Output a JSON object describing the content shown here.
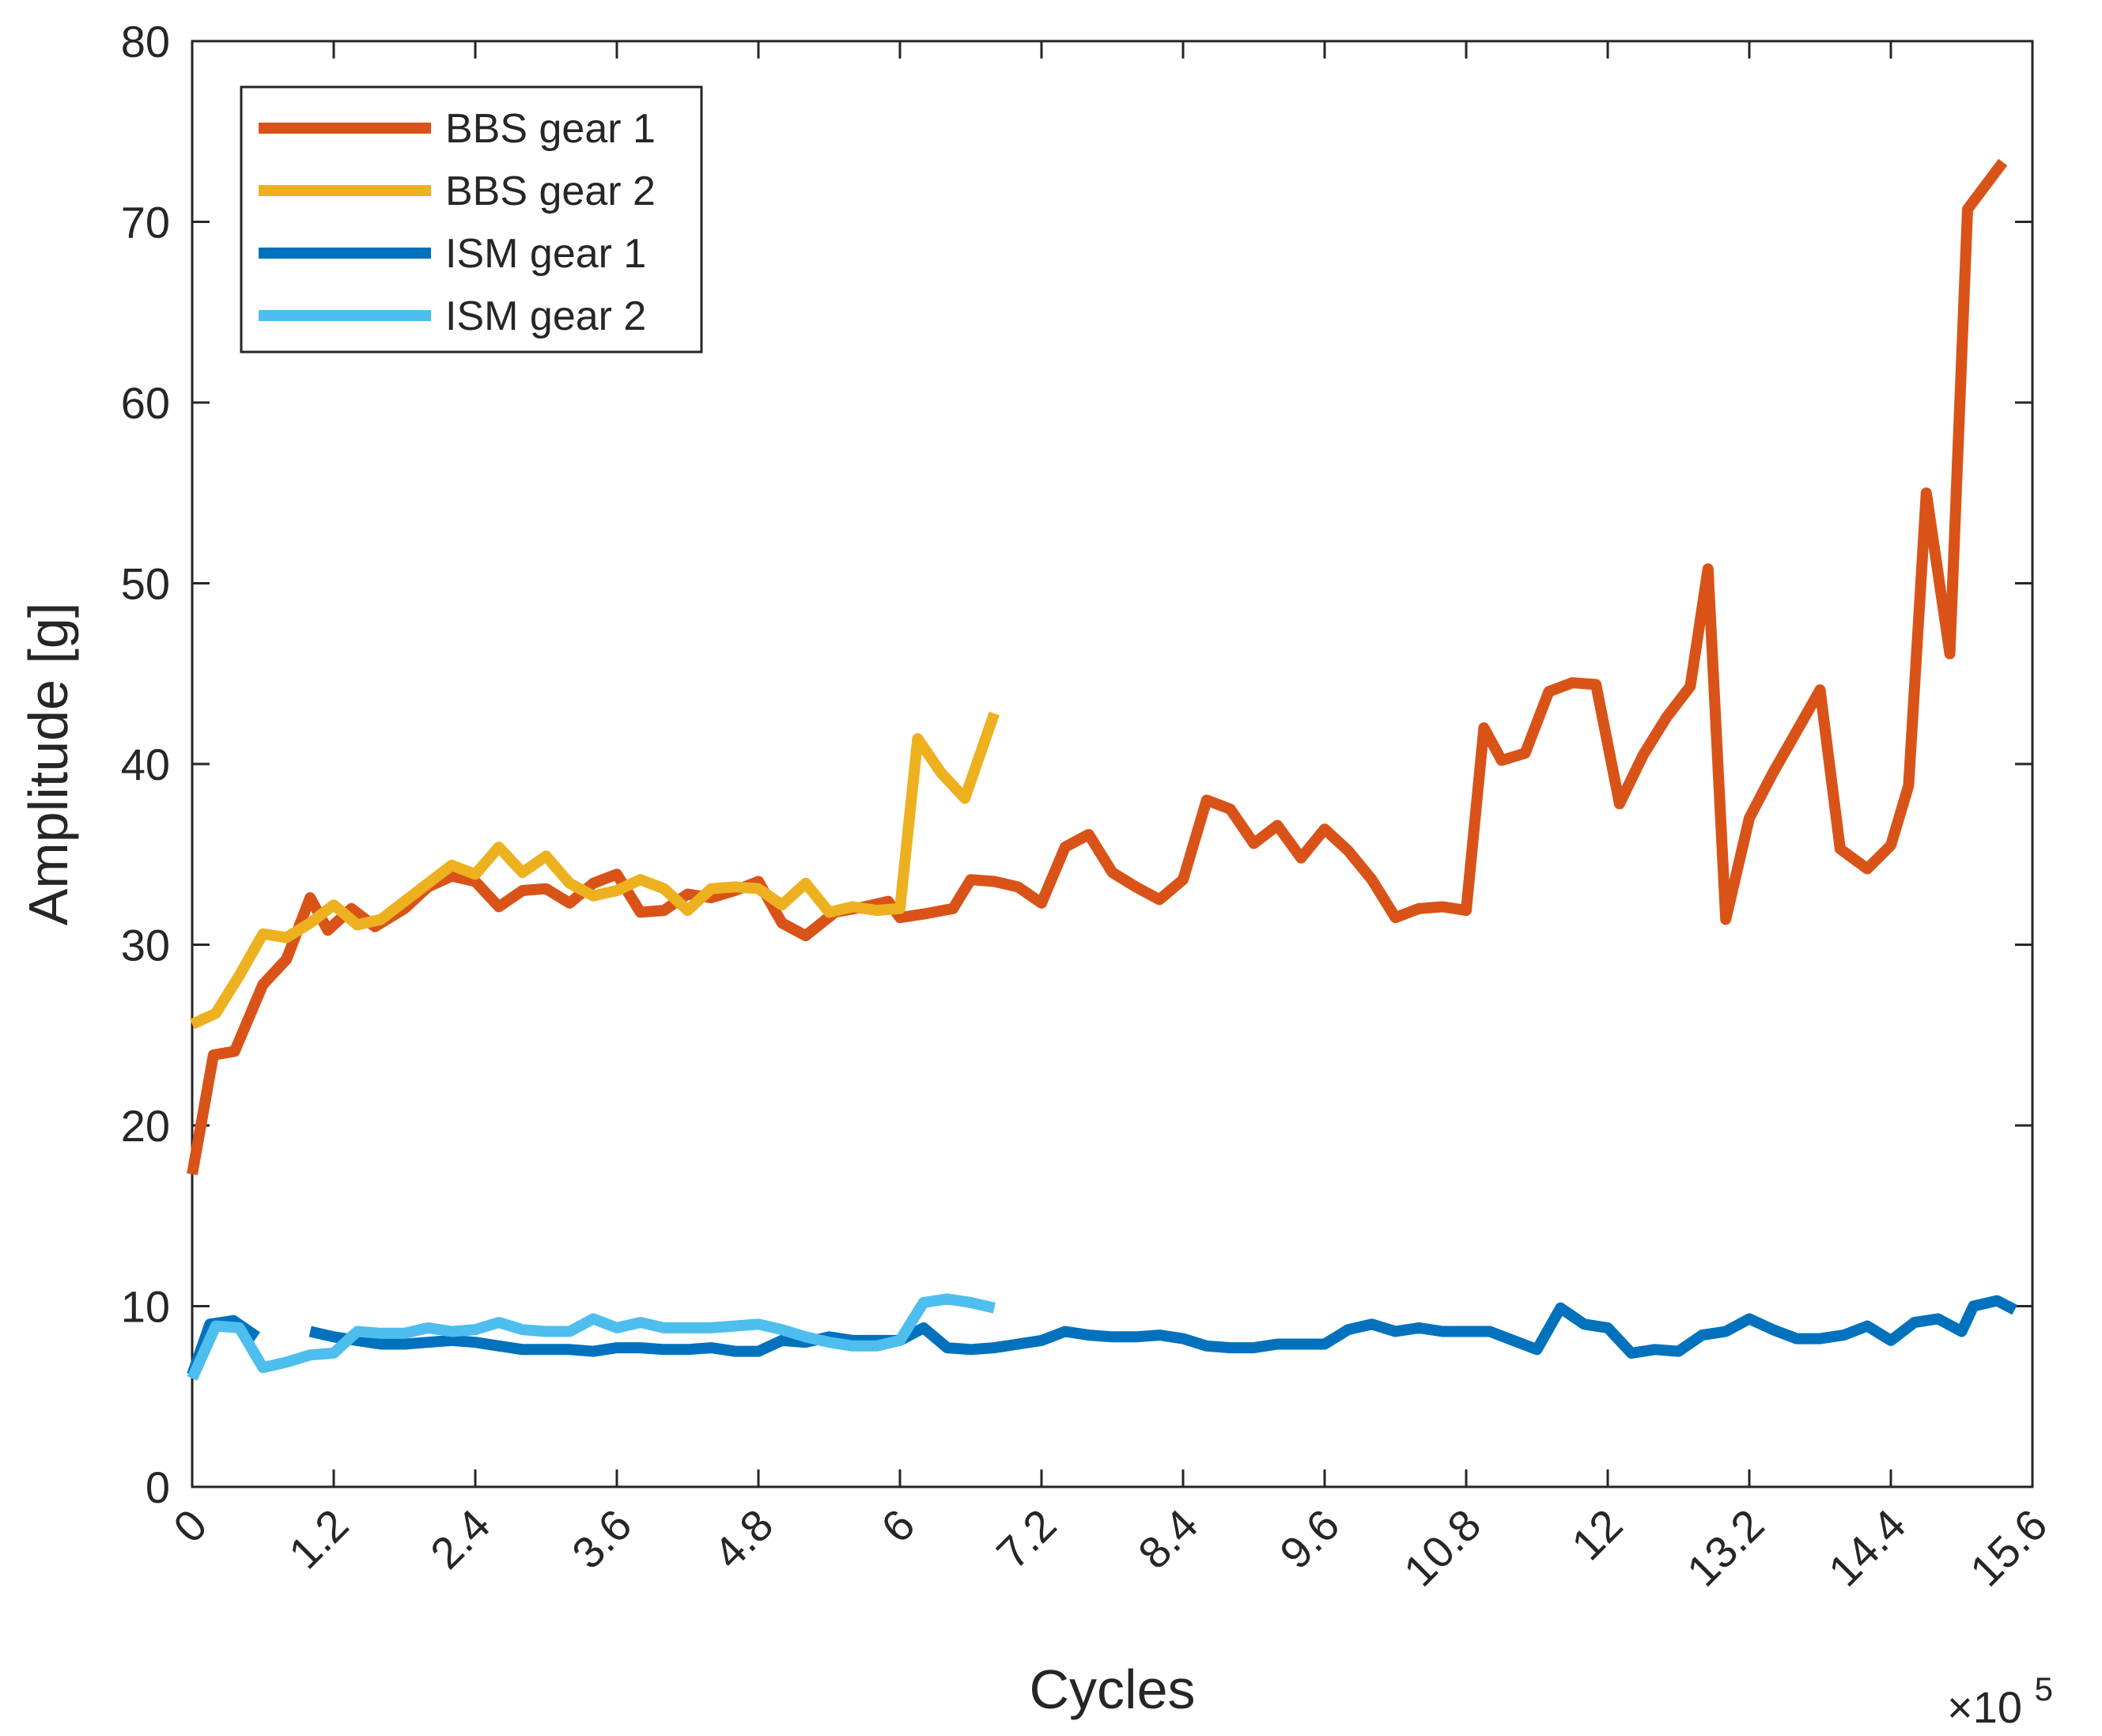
{
  "chart_data": {
    "type": "line",
    "title": "",
    "xlabel": "Cycles",
    "ylabel": "Amplitude [g]",
    "x_exponent_label": "×10",
    "x_exponent_power": "5",
    "xlim": [
      0,
      15.6
    ],
    "ylim": [
      0,
      80
    ],
    "xticks": [
      0,
      1.2,
      2.4,
      3.6,
      4.8,
      6,
      7.2,
      8.4,
      9.6,
      10.8,
      12,
      13.2,
      14.4,
      15.6
    ],
    "xtick_labels": [
      "0",
      "1.2",
      "2.4",
      "3.6",
      "4.8",
      "6",
      "7.2",
      "8.4",
      "9.6",
      "10.8",
      "12",
      "13.2",
      "14.4",
      "15.6"
    ],
    "yticks": [
      0,
      10,
      20,
      30,
      40,
      50,
      60,
      70,
      80
    ],
    "ytick_labels": [
      "0",
      "10",
      "20",
      "30",
      "40",
      "50",
      "60",
      "70",
      "80"
    ],
    "grid": false,
    "legend_position": "top-left",
    "series": [
      {
        "name": "BBS gear 1",
        "color": "#D95319",
        "points": [
          [
            0.0,
            17.3
          ],
          [
            0.18,
            23.9
          ],
          [
            0.36,
            24.1
          ],
          [
            0.6,
            27.8
          ],
          [
            0.8,
            29.2
          ],
          [
            1.0,
            32.6
          ],
          [
            1.15,
            30.8
          ],
          [
            1.35,
            32.0
          ],
          [
            1.55,
            31.0
          ],
          [
            1.8,
            32.0
          ],
          [
            2.0,
            33.2
          ],
          [
            2.2,
            33.8
          ],
          [
            2.4,
            33.5
          ],
          [
            2.6,
            32.1
          ],
          [
            2.8,
            33.0
          ],
          [
            3.0,
            33.1
          ],
          [
            3.2,
            32.3
          ],
          [
            3.4,
            33.4
          ],
          [
            3.6,
            33.9
          ],
          [
            3.8,
            31.8
          ],
          [
            4.0,
            31.9
          ],
          [
            4.2,
            32.8
          ],
          [
            4.4,
            32.6
          ],
          [
            4.6,
            33.0
          ],
          [
            4.8,
            33.5
          ],
          [
            5.0,
            31.2
          ],
          [
            5.2,
            30.5
          ],
          [
            5.45,
            31.8
          ],
          [
            5.7,
            32.1
          ],
          [
            5.9,
            32.4
          ],
          [
            6.0,
            31.5
          ],
          [
            6.2,
            31.7
          ],
          [
            6.45,
            32.0
          ],
          [
            6.6,
            33.6
          ],
          [
            6.8,
            33.5
          ],
          [
            7.0,
            33.2
          ],
          [
            7.2,
            32.3
          ],
          [
            7.4,
            35.4
          ],
          [
            7.6,
            36.1
          ],
          [
            7.8,
            34.0
          ],
          [
            8.0,
            33.2
          ],
          [
            8.2,
            32.5
          ],
          [
            8.4,
            33.6
          ],
          [
            8.6,
            38.0
          ],
          [
            8.8,
            37.5
          ],
          [
            9.0,
            35.6
          ],
          [
            9.2,
            36.6
          ],
          [
            9.4,
            34.8
          ],
          [
            9.6,
            36.4
          ],
          [
            9.8,
            35.2
          ],
          [
            10.0,
            33.6
          ],
          [
            10.2,
            31.5
          ],
          [
            10.4,
            32.0
          ],
          [
            10.6,
            32.1
          ],
          [
            10.8,
            31.9
          ],
          [
            10.95,
            42.0
          ],
          [
            11.1,
            40.2
          ],
          [
            11.3,
            40.6
          ],
          [
            11.5,
            44.0
          ],
          [
            11.7,
            44.5
          ],
          [
            11.9,
            44.4
          ],
          [
            12.1,
            37.8
          ],
          [
            12.3,
            40.5
          ],
          [
            12.5,
            42.6
          ],
          [
            12.7,
            44.3
          ],
          [
            12.85,
            50.8
          ],
          [
            13.0,
            31.4
          ],
          [
            13.2,
            37.0
          ],
          [
            13.4,
            39.5
          ],
          [
            13.6,
            41.8
          ],
          [
            13.8,
            44.1
          ],
          [
            13.97,
            35.3
          ],
          [
            14.2,
            34.2
          ],
          [
            14.4,
            35.5
          ],
          [
            14.55,
            38.8
          ],
          [
            14.7,
            55.0
          ],
          [
            14.9,
            46.1
          ],
          [
            15.05,
            70.7
          ],
          [
            15.35,
            73.3
          ]
        ]
      },
      {
        "name": "BBS gear 2",
        "color": "#EDB120",
        "points": [
          [
            0.0,
            25.6
          ],
          [
            0.2,
            26.2
          ],
          [
            0.4,
            28.3
          ],
          [
            0.6,
            30.6
          ],
          [
            0.8,
            30.4
          ],
          [
            1.0,
            31.2
          ],
          [
            1.2,
            32.2
          ],
          [
            1.4,
            31.1
          ],
          [
            1.6,
            31.4
          ],
          [
            1.8,
            32.4
          ],
          [
            2.0,
            33.4
          ],
          [
            2.2,
            34.4
          ],
          [
            2.4,
            33.9
          ],
          [
            2.6,
            35.4
          ],
          [
            2.8,
            34.0
          ],
          [
            3.0,
            34.9
          ],
          [
            3.2,
            33.4
          ],
          [
            3.4,
            32.7
          ],
          [
            3.6,
            33.0
          ],
          [
            3.8,
            33.6
          ],
          [
            4.0,
            33.1
          ],
          [
            4.2,
            31.9
          ],
          [
            4.4,
            33.1
          ],
          [
            4.6,
            33.2
          ],
          [
            4.8,
            33.1
          ],
          [
            5.0,
            32.2
          ],
          [
            5.2,
            33.4
          ],
          [
            5.4,
            31.8
          ],
          [
            5.6,
            32.1
          ],
          [
            5.8,
            31.9
          ],
          [
            6.0,
            32.0
          ],
          [
            6.15,
            41.4
          ],
          [
            6.35,
            39.5
          ],
          [
            6.55,
            38.1
          ],
          [
            6.8,
            42.8
          ]
        ]
      },
      {
        "name": "ISM gear 1",
        "color": "#0072BD",
        "segments": [
          [
            [
              0.0,
              6.2
            ],
            [
              0.15,
              9.0
            ],
            [
              0.35,
              9.2
            ],
            [
              0.55,
              8.3
            ]
          ],
          [
            [
              1.0,
              8.6
            ],
            [
              1.2,
              8.3
            ],
            [
              1.4,
              8.1
            ],
            [
              1.6,
              7.9
            ],
            [
              1.8,
              7.9
            ],
            [
              2.0,
              8.0
            ],
            [
              2.2,
              8.1
            ],
            [
              2.4,
              8.0
            ],
            [
              2.6,
              7.8
            ],
            [
              2.8,
              7.6
            ],
            [
              3.0,
              7.6
            ],
            [
              3.2,
              7.6
            ],
            [
              3.4,
              7.5
            ],
            [
              3.6,
              7.7
            ],
            [
              3.8,
              7.7
            ],
            [
              4.0,
              7.6
            ],
            [
              4.2,
              7.6
            ],
            [
              4.4,
              7.7
            ],
            [
              4.6,
              7.5
            ],
            [
              4.8,
              7.5
            ],
            [
              5.0,
              8.1
            ],
            [
              5.2,
              8.0
            ],
            [
              5.4,
              8.3
            ],
            [
              5.6,
              8.1
            ],
            [
              5.8,
              8.1
            ],
            [
              6.0,
              8.1
            ],
            [
              6.2,
              8.8
            ],
            [
              6.4,
              7.7
            ],
            [
              6.6,
              7.6
            ],
            [
              6.8,
              7.7
            ],
            [
              7.0,
              7.9
            ],
            [
              7.2,
              8.1
            ],
            [
              7.4,
              8.6
            ],
            [
              7.6,
              8.4
            ],
            [
              7.8,
              8.3
            ],
            [
              8.0,
              8.3
            ],
            [
              8.2,
              8.4
            ],
            [
              8.4,
              8.2
            ],
            [
              8.6,
              7.8
            ],
            [
              8.8,
              7.7
            ],
            [
              9.0,
              7.7
            ],
            [
              9.2,
              7.9
            ],
            [
              9.4,
              7.9
            ],
            [
              9.6,
              7.9
            ],
            [
              9.8,
              8.7
            ],
            [
              10.0,
              9.0
            ],
            [
              10.2,
              8.6
            ],
            [
              10.4,
              8.8
            ],
            [
              10.6,
              8.6
            ],
            [
              10.8,
              8.6
            ],
            [
              11.0,
              8.6
            ],
            [
              11.2,
              8.1
            ],
            [
              11.4,
              7.6
            ],
            [
              11.6,
              9.9
            ],
            [
              11.8,
              9.0
            ],
            [
              12.0,
              8.8
            ],
            [
              12.2,
              7.4
            ],
            [
              12.4,
              7.6
            ],
            [
              12.6,
              7.5
            ],
            [
              12.8,
              8.4
            ],
            [
              13.0,
              8.6
            ],
            [
              13.2,
              9.3
            ],
            [
              13.4,
              8.7
            ],
            [
              13.6,
              8.2
            ],
            [
              13.8,
              8.2
            ],
            [
              14.0,
              8.4
            ],
            [
              14.2,
              8.9
            ],
            [
              14.4,
              8.1
            ],
            [
              14.6,
              9.1
            ],
            [
              14.8,
              9.3
            ],
            [
              15.0,
              8.6
            ],
            [
              15.1,
              10.0
            ],
            [
              15.3,
              10.3
            ],
            [
              15.45,
              9.8
            ]
          ]
        ]
      },
      {
        "name": "ISM gear 2",
        "color": "#4DBEEE",
        "points": [
          [
            0.0,
            6.0
          ],
          [
            0.2,
            8.9
          ],
          [
            0.4,
            8.8
          ],
          [
            0.6,
            6.6
          ],
          [
            0.8,
            6.9
          ],
          [
            1.0,
            7.3
          ],
          [
            1.2,
            7.4
          ],
          [
            1.4,
            8.6
          ],
          [
            1.6,
            8.5
          ],
          [
            1.8,
            8.5
          ],
          [
            2.0,
            8.8
          ],
          [
            2.2,
            8.6
          ],
          [
            2.4,
            8.7
          ],
          [
            2.6,
            9.1
          ],
          [
            2.8,
            8.7
          ],
          [
            3.0,
            8.6
          ],
          [
            3.2,
            8.6
          ],
          [
            3.4,
            9.3
          ],
          [
            3.6,
            8.8
          ],
          [
            3.8,
            9.1
          ],
          [
            4.0,
            8.8
          ],
          [
            4.2,
            8.8
          ],
          [
            4.4,
            8.8
          ],
          [
            4.6,
            8.9
          ],
          [
            4.8,
            9.0
          ],
          [
            5.0,
            8.7
          ],
          [
            5.2,
            8.3
          ],
          [
            5.4,
            8.0
          ],
          [
            5.6,
            7.8
          ],
          [
            5.8,
            7.8
          ],
          [
            6.0,
            8.1
          ],
          [
            6.2,
            10.2
          ],
          [
            6.4,
            10.4
          ],
          [
            6.6,
            10.2
          ],
          [
            6.8,
            9.9
          ]
        ]
      }
    ]
  }
}
